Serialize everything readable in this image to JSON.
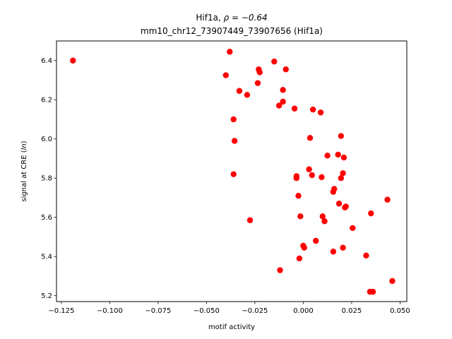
{
  "chart_data": {
    "type": "scatter",
    "title_line1": "Hif1a, ",
    "title_rho": "ρ = −0.64",
    "title_line2": "mm10_chr12_73907449_73907656 (Hif1a)",
    "xlabel": "motif activity",
    "ylabel_prefix": "signal at CRE (",
    "ylabel_italic": "ln",
    "ylabel_suffix": ")",
    "xlim": [
      -0.1275,
      0.0535
    ],
    "ylim": [
      5.17,
      6.5
    ],
    "xticks": [
      -0.125,
      -0.1,
      -0.075,
      -0.05,
      -0.025,
      0.0,
      0.025,
      0.05
    ],
    "xtick_labels": [
      "−0.125",
      "−0.100",
      "−0.075",
      "−0.050",
      "−0.025",
      "0.000",
      "0.025",
      "0.050"
    ],
    "yticks": [
      5.2,
      5.4,
      5.6,
      5.8,
      6.0,
      6.2,
      6.4
    ],
    "ytick_labels": [
      "5.2",
      "5.4",
      "5.6",
      "5.8",
      "6.0",
      "6.2",
      "6.4"
    ],
    "marker_color": "#ff0000",
    "points": [
      {
        "x": -0.119,
        "y": 6.4
      },
      {
        "x": -0.038,
        "y": 6.445
      },
      {
        "x": -0.04,
        "y": 6.325
      },
      {
        "x": -0.033,
        "y": 6.245
      },
      {
        "x": -0.029,
        "y": 6.225
      },
      {
        "x": -0.023,
        "y": 6.355
      },
      {
        "x": -0.0225,
        "y": 6.34
      },
      {
        "x": -0.0235,
        "y": 6.285
      },
      {
        "x": -0.015,
        "y": 6.395
      },
      {
        "x": -0.009,
        "y": 6.355
      },
      {
        "x": -0.0105,
        "y": 6.25
      },
      {
        "x": -0.0105,
        "y": 6.19
      },
      {
        "x": -0.0125,
        "y": 6.17
      },
      {
        "x": -0.0045,
        "y": 6.155
      },
      {
        "x": 0.005,
        "y": 6.15
      },
      {
        "x": 0.009,
        "y": 6.135
      },
      {
        "x": -0.036,
        "y": 6.1
      },
      {
        "x": -0.0355,
        "y": 5.99
      },
      {
        "x": 0.0035,
        "y": 6.005
      },
      {
        "x": 0.0195,
        "y": 6.015
      },
      {
        "x": 0.0125,
        "y": 5.915
      },
      {
        "x": 0.018,
        "y": 5.92
      },
      {
        "x": 0.021,
        "y": 5.905
      },
      {
        "x": -0.036,
        "y": 5.82
      },
      {
        "x": -0.0035,
        "y": 5.81
      },
      {
        "x": -0.0035,
        "y": 5.8
      },
      {
        "x": 0.003,
        "y": 5.845
      },
      {
        "x": 0.0045,
        "y": 5.815
      },
      {
        "x": 0.0095,
        "y": 5.805
      },
      {
        "x": 0.0205,
        "y": 5.825
      },
      {
        "x": 0.0195,
        "y": 5.8
      },
      {
        "x": 0.016,
        "y": 5.745
      },
      {
        "x": 0.0155,
        "y": 5.73
      },
      {
        "x": -0.0025,
        "y": 5.71
      },
      {
        "x": 0.0185,
        "y": 5.67
      },
      {
        "x": 0.0215,
        "y": 5.65
      },
      {
        "x": 0.022,
        "y": 5.655
      },
      {
        "x": 0.0435,
        "y": 5.69
      },
      {
        "x": -0.0015,
        "y": 5.605
      },
      {
        "x": 0.01,
        "y": 5.605
      },
      {
        "x": 0.011,
        "y": 5.58
      },
      {
        "x": 0.035,
        "y": 5.62
      },
      {
        "x": -0.0275,
        "y": 5.585
      },
      {
        "x": 0.0255,
        "y": 5.545
      },
      {
        "x": 0.0065,
        "y": 5.48
      },
      {
        "x": 0.0,
        "y": 5.455
      },
      {
        "x": 0.0005,
        "y": 5.445
      },
      {
        "x": 0.0155,
        "y": 5.425
      },
      {
        "x": 0.0205,
        "y": 5.445
      },
      {
        "x": 0.0325,
        "y": 5.405
      },
      {
        "x": -0.002,
        "y": 5.39
      },
      {
        "x": -0.012,
        "y": 5.33
      },
      {
        "x": 0.046,
        "y": 5.275
      },
      {
        "x": 0.0345,
        "y": 5.22
      },
      {
        "x": 0.036,
        "y": 5.22
      }
    ]
  }
}
